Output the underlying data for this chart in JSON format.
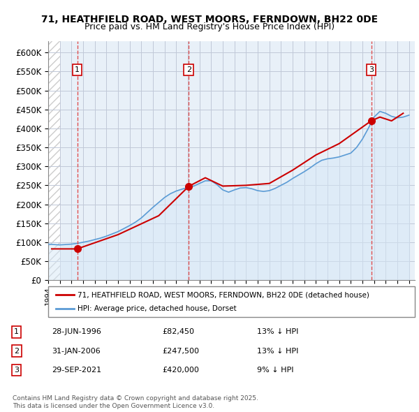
{
  "title_line1": "71, HEATHFIELD ROAD, WEST MOORS, FERNDOWN, BH22 0DE",
  "title_line2": "Price paid vs. HM Land Registry's House Price Index (HPI)",
  "ylabel": "",
  "ylim": [
    0,
    630000
  ],
  "yticks": [
    0,
    50000,
    100000,
    150000,
    200000,
    250000,
    300000,
    350000,
    400000,
    450000,
    500000,
    550000,
    600000
  ],
  "ytick_labels": [
    "£0",
    "£50K",
    "£100K",
    "£150K",
    "£200K",
    "£250K",
    "£300K",
    "£350K",
    "£400K",
    "£450K",
    "£500K",
    "£550K",
    "£600K"
  ],
  "xlim_start": 1994.0,
  "xlim_end": 2025.5,
  "sale_events": [
    {
      "label": "1",
      "date": "28-JUN-1996",
      "date_num": 1996.49,
      "price": 82450,
      "hpi_diff": "13% ↓ HPI"
    },
    {
      "label": "2",
      "date": "31-JAN-2006",
      "date_num": 2006.08,
      "price": 247500,
      "hpi_diff": "13% ↓ HPI"
    },
    {
      "label": "3",
      "date": "29-SEP-2021",
      "date_num": 2021.75,
      "price": 420000,
      "hpi_diff": "9% ↓ HPI"
    }
  ],
  "legend_line1": "71, HEATHFIELD ROAD, WEST MOORS, FERNDOWN, BH22 0DE (detached house)",
  "legend_line2": "HPI: Average price, detached house, Dorset",
  "red_line_color": "#cc0000",
  "blue_line_color": "#5b9bd5",
  "blue_fill_color": "#d6e8f7",
  "hatch_color": "#c8c8c8",
  "grid_color": "#c0c8d8",
  "dashed_line_color": "#e05050",
  "footnote": "Contains HM Land Registry data © Crown copyright and database right 2025.\nThis data is licensed under the Open Government Licence v3.0.",
  "hpi_dorset_years": [
    1994.0,
    1994.5,
    1995.0,
    1995.5,
    1996.0,
    1996.5,
    1997.0,
    1997.5,
    1998.0,
    1998.5,
    1999.0,
    1999.5,
    2000.0,
    2000.5,
    2001.0,
    2001.5,
    2002.0,
    2002.5,
    2003.0,
    2003.5,
    2004.0,
    2004.5,
    2005.0,
    2005.5,
    2006.0,
    2006.5,
    2007.0,
    2007.5,
    2008.0,
    2008.5,
    2009.0,
    2009.5,
    2010.0,
    2010.5,
    2011.0,
    2011.5,
    2012.0,
    2012.5,
    2013.0,
    2013.5,
    2014.0,
    2014.5,
    2015.0,
    2015.5,
    2016.0,
    2016.5,
    2017.0,
    2017.5,
    2018.0,
    2018.5,
    2019.0,
    2019.5,
    2020.0,
    2020.5,
    2021.0,
    2021.5,
    2022.0,
    2022.5,
    2023.0,
    2023.5,
    2024.0,
    2024.5,
    2025.0
  ],
  "hpi_dorset_values": [
    95000,
    94000,
    93000,
    94000,
    95000,
    97000,
    100000,
    103000,
    107000,
    111000,
    116000,
    122000,
    128000,
    136000,
    144000,
    153000,
    164000,
    178000,
    192000,
    205000,
    218000,
    228000,
    235000,
    240000,
    244000,
    248000,
    255000,
    262000,
    262000,
    252000,
    238000,
    232000,
    238000,
    243000,
    244000,
    241000,
    236000,
    234000,
    236000,
    242000,
    250000,
    258000,
    268000,
    277000,
    286000,
    296000,
    307000,
    316000,
    320000,
    322000,
    325000,
    330000,
    335000,
    350000,
    372000,
    400000,
    430000,
    445000,
    440000,
    432000,
    428000,
    430000,
    435000
  ],
  "price_paid_years": [
    1994.3,
    1996.49,
    2000.0,
    2003.5,
    2005.0,
    2006.08,
    2007.5,
    2009.0,
    2011.0,
    2013.0,
    2015.0,
    2017.0,
    2019.0,
    2021.75,
    2022.5,
    2023.5,
    2024.5
  ],
  "price_paid_values": [
    82450,
    82450,
    120000,
    170000,
    215000,
    247500,
    270000,
    248000,
    250000,
    255000,
    290000,
    330000,
    360000,
    420000,
    430000,
    420000,
    440000
  ]
}
